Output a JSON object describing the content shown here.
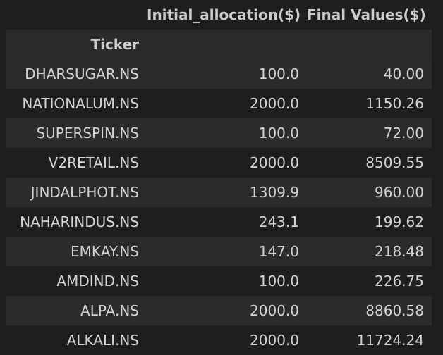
{
  "table": {
    "columns": [
      "Initial_allocation($)",
      "Final Values($)"
    ],
    "index_name": "Ticker",
    "rows": [
      {
        "ticker": "DHARSUGAR.NS",
        "initial": "100.0",
        "final": "40.00"
      },
      {
        "ticker": "NATIONALUM.NS",
        "initial": "2000.0",
        "final": "1150.26"
      },
      {
        "ticker": "SUPERSPIN.NS",
        "initial": "100.0",
        "final": "72.00"
      },
      {
        "ticker": "V2RETAIL.NS",
        "initial": "2000.0",
        "final": "8509.55"
      },
      {
        "ticker": "JINDALPHOT.NS",
        "initial": "1309.9",
        "final": "960.00"
      },
      {
        "ticker": "NAHARINDUS.NS",
        "initial": "243.1",
        "final": "199.62"
      },
      {
        "ticker": "EMKAY.NS",
        "initial": "147.0",
        "final": "218.48"
      },
      {
        "ticker": "AMDIND.NS",
        "initial": "100.0",
        "final": "226.75"
      },
      {
        "ticker": "ALPA.NS",
        "initial": "2000.0",
        "final": "8860.58"
      },
      {
        "ticker": "ALKALI.NS",
        "initial": "2000.0",
        "final": "11724.24"
      }
    ]
  }
}
